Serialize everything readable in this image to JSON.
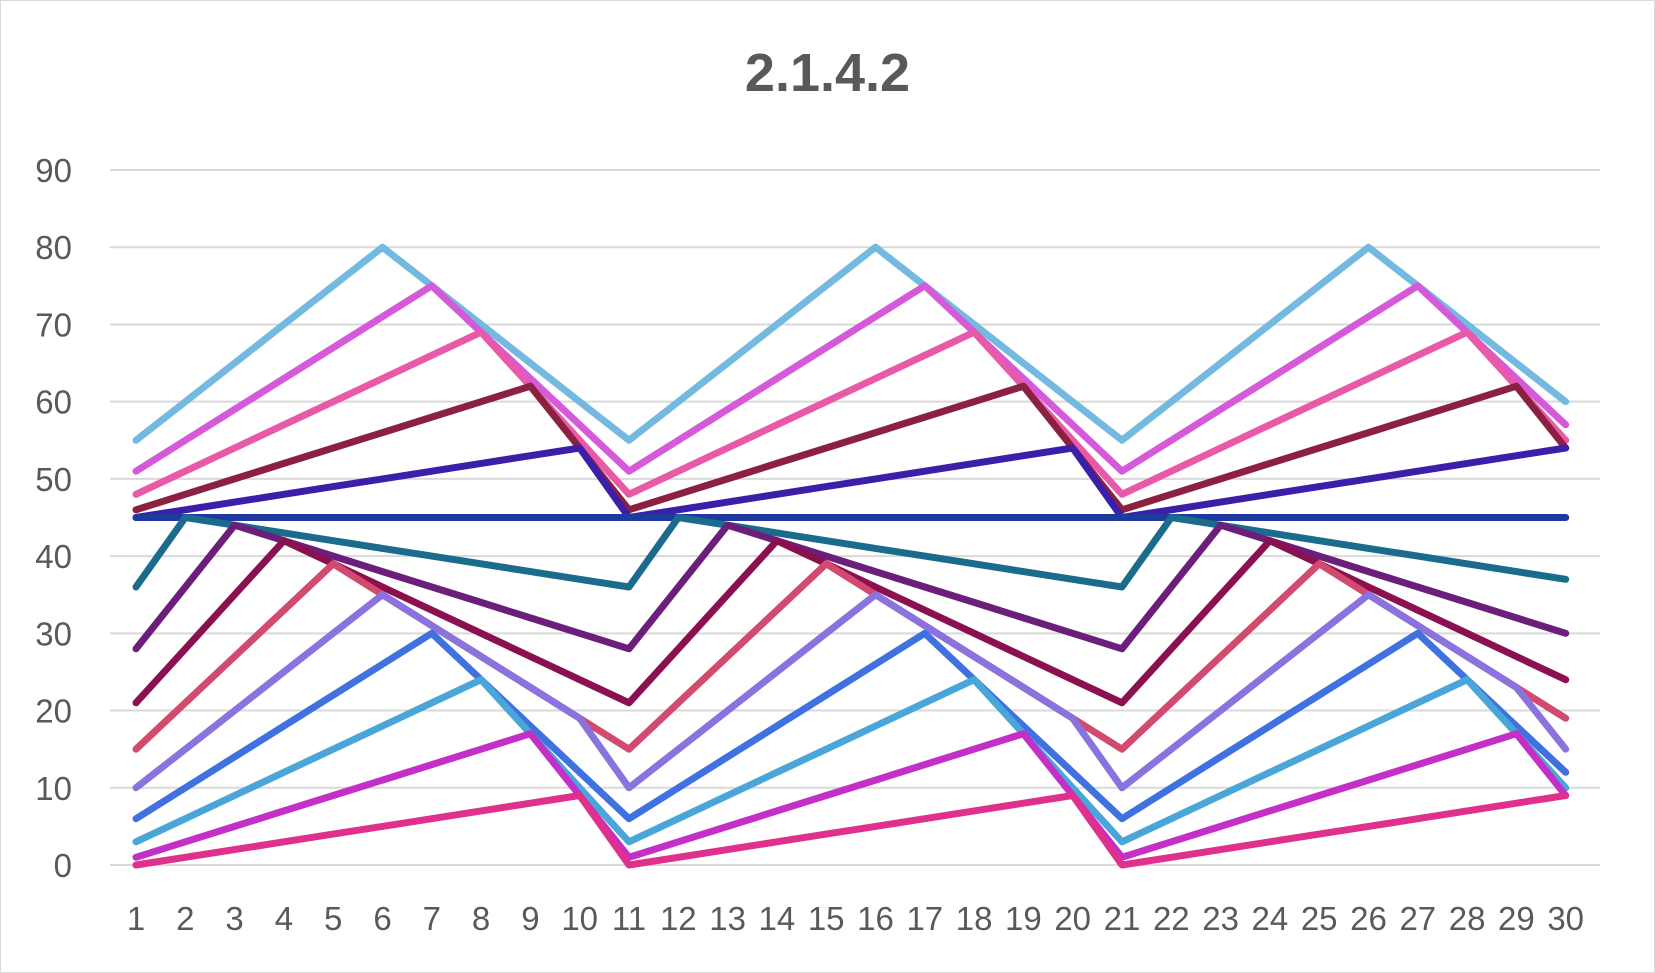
{
  "chart_data": {
    "type": "line",
    "title": "2.1.4.2",
    "xlabel": "",
    "ylabel": "",
    "ylim": [
      0,
      90
    ],
    "yticks": [
      "0",
      "10",
      "20",
      "30",
      "40",
      "50",
      "60",
      "70",
      "80",
      "90"
    ],
    "categories": [
      "1",
      "2",
      "3",
      "4",
      "5",
      "6",
      "7",
      "8",
      "9",
      "10",
      "11",
      "12",
      "13",
      "14",
      "15",
      "16",
      "17",
      "18",
      "19",
      "20",
      "21",
      "22",
      "23",
      "24",
      "25",
      "26",
      "27",
      "28",
      "29",
      "30"
    ],
    "grid": true,
    "legend": "none",
    "series": [
      {
        "color": "#74b9e0",
        "values": [
          55,
          60,
          65,
          70,
          75,
          80,
          75,
          70,
          65,
          60,
          55,
          60,
          65,
          70,
          75,
          80,
          75,
          70,
          65,
          60,
          55,
          60,
          65,
          70,
          75,
          80,
          75,
          70,
          65,
          60
        ]
      },
      {
        "color": "#d45ad9",
        "values": [
          51,
          55,
          59,
          63,
          67,
          71,
          75,
          69,
          63,
          57,
          51,
          55,
          59,
          63,
          67,
          71,
          75,
          69,
          63,
          57,
          51,
          55,
          59,
          63,
          67,
          71,
          75,
          69,
          63,
          57
        ]
      },
      {
        "color": "#e85aa8",
        "values": [
          48,
          51,
          54,
          57,
          60,
          63,
          66,
          69,
          62,
          55,
          48,
          51,
          54,
          57,
          60,
          63,
          66,
          69,
          62,
          55,
          48,
          51,
          54,
          57,
          60,
          63,
          66,
          69,
          62,
          55
        ]
      },
      {
        "color": "#8b2040",
        "values": [
          46,
          48,
          50,
          52,
          54,
          56,
          58,
          60,
          62,
          54,
          46,
          48,
          50,
          52,
          54,
          56,
          58,
          60,
          62,
          54,
          46,
          48,
          50,
          52,
          54,
          56,
          58,
          60,
          62,
          54
        ]
      },
      {
        "color": "#3b1fa8",
        "values": [
          45,
          46,
          47,
          48,
          49,
          50,
          51,
          52,
          53,
          54,
          45,
          46,
          47,
          48,
          49,
          50,
          51,
          52,
          53,
          54,
          45,
          46,
          47,
          48,
          49,
          50,
          51,
          52,
          53,
          54
        ]
      },
      {
        "color": "#1f3a9e",
        "values": [
          45,
          45,
          45,
          45,
          45,
          45,
          45,
          45,
          45,
          45,
          45,
          45,
          45,
          45,
          45,
          45,
          45,
          45,
          45,
          45,
          45,
          45,
          45,
          45,
          45,
          45,
          45,
          45,
          45,
          45
        ]
      },
      {
        "color": "#1b6b8c",
        "values": [
          36,
          45,
          44,
          43,
          42,
          41,
          40,
          39,
          38,
          37,
          36,
          45,
          44,
          43,
          42,
          41,
          40,
          39,
          38,
          37,
          36,
          45,
          44,
          43,
          42,
          41,
          40,
          39,
          38,
          37
        ]
      },
      {
        "color": "#6b1f7a",
        "values": [
          28,
          36,
          44,
          42,
          40,
          38,
          36,
          34,
          32,
          30,
          28,
          36,
          44,
          42,
          40,
          38,
          36,
          34,
          32,
          30,
          28,
          36,
          44,
          42,
          40,
          38,
          36,
          34,
          32,
          30
        ]
      },
      {
        "color": "#8b1050",
        "values": [
          21,
          28,
          35,
          42,
          39,
          36,
          33,
          30,
          27,
          24,
          21,
          28,
          35,
          42,
          39,
          36,
          33,
          30,
          27,
          24,
          21,
          28,
          35,
          42,
          39,
          36,
          33,
          30,
          27,
          24
        ]
      },
      {
        "color": "#d24a6e",
        "values": [
          15,
          21,
          27,
          33,
          39,
          35,
          31,
          27,
          23,
          19,
          15,
          21,
          27,
          33,
          39,
          35,
          31,
          27,
          23,
          19,
          15,
          21,
          27,
          33,
          39,
          35,
          31,
          27,
          23,
          19
        ]
      },
      {
        "color": "#8a73de",
        "values": [
          10,
          15,
          20,
          25,
          30,
          35,
          31,
          27,
          23,
          19,
          10,
          15,
          20,
          25,
          30,
          35,
          31,
          27,
          23,
          19,
          10,
          15,
          20,
          25,
          30,
          35,
          31,
          27,
          23,
          15
        ]
      },
      {
        "color": "#3f72e0",
        "values": [
          6,
          10,
          14,
          18,
          22,
          26,
          30,
          24,
          18,
          12,
          6,
          10,
          14,
          18,
          22,
          26,
          30,
          24,
          18,
          12,
          6,
          10,
          14,
          18,
          22,
          26,
          30,
          24,
          18,
          12
        ]
      },
      {
        "color": "#4aa6d8",
        "values": [
          3,
          6,
          9,
          12,
          15,
          18,
          21,
          24,
          17,
          10,
          3,
          6,
          9,
          12,
          15,
          18,
          21,
          24,
          17,
          10,
          3,
          6,
          9,
          12,
          15,
          18,
          21,
          24,
          17,
          10
        ]
      },
      {
        "color": "#c42fc8",
        "values": [
          1,
          3,
          5,
          7,
          9,
          11,
          13,
          15,
          17,
          9,
          1,
          3,
          5,
          7,
          9,
          11,
          13,
          15,
          17,
          9,
          1,
          3,
          5,
          7,
          9,
          11,
          13,
          15,
          17,
          9
        ]
      },
      {
        "color": "#e0308e",
        "values": [
          0,
          1,
          2,
          3,
          4,
          5,
          6,
          7,
          8,
          9,
          0,
          1,
          2,
          3,
          4,
          5,
          6,
          7,
          8,
          9,
          0,
          1,
          2,
          3,
          4,
          5,
          6,
          7,
          8,
          9
        ]
      }
    ]
  }
}
